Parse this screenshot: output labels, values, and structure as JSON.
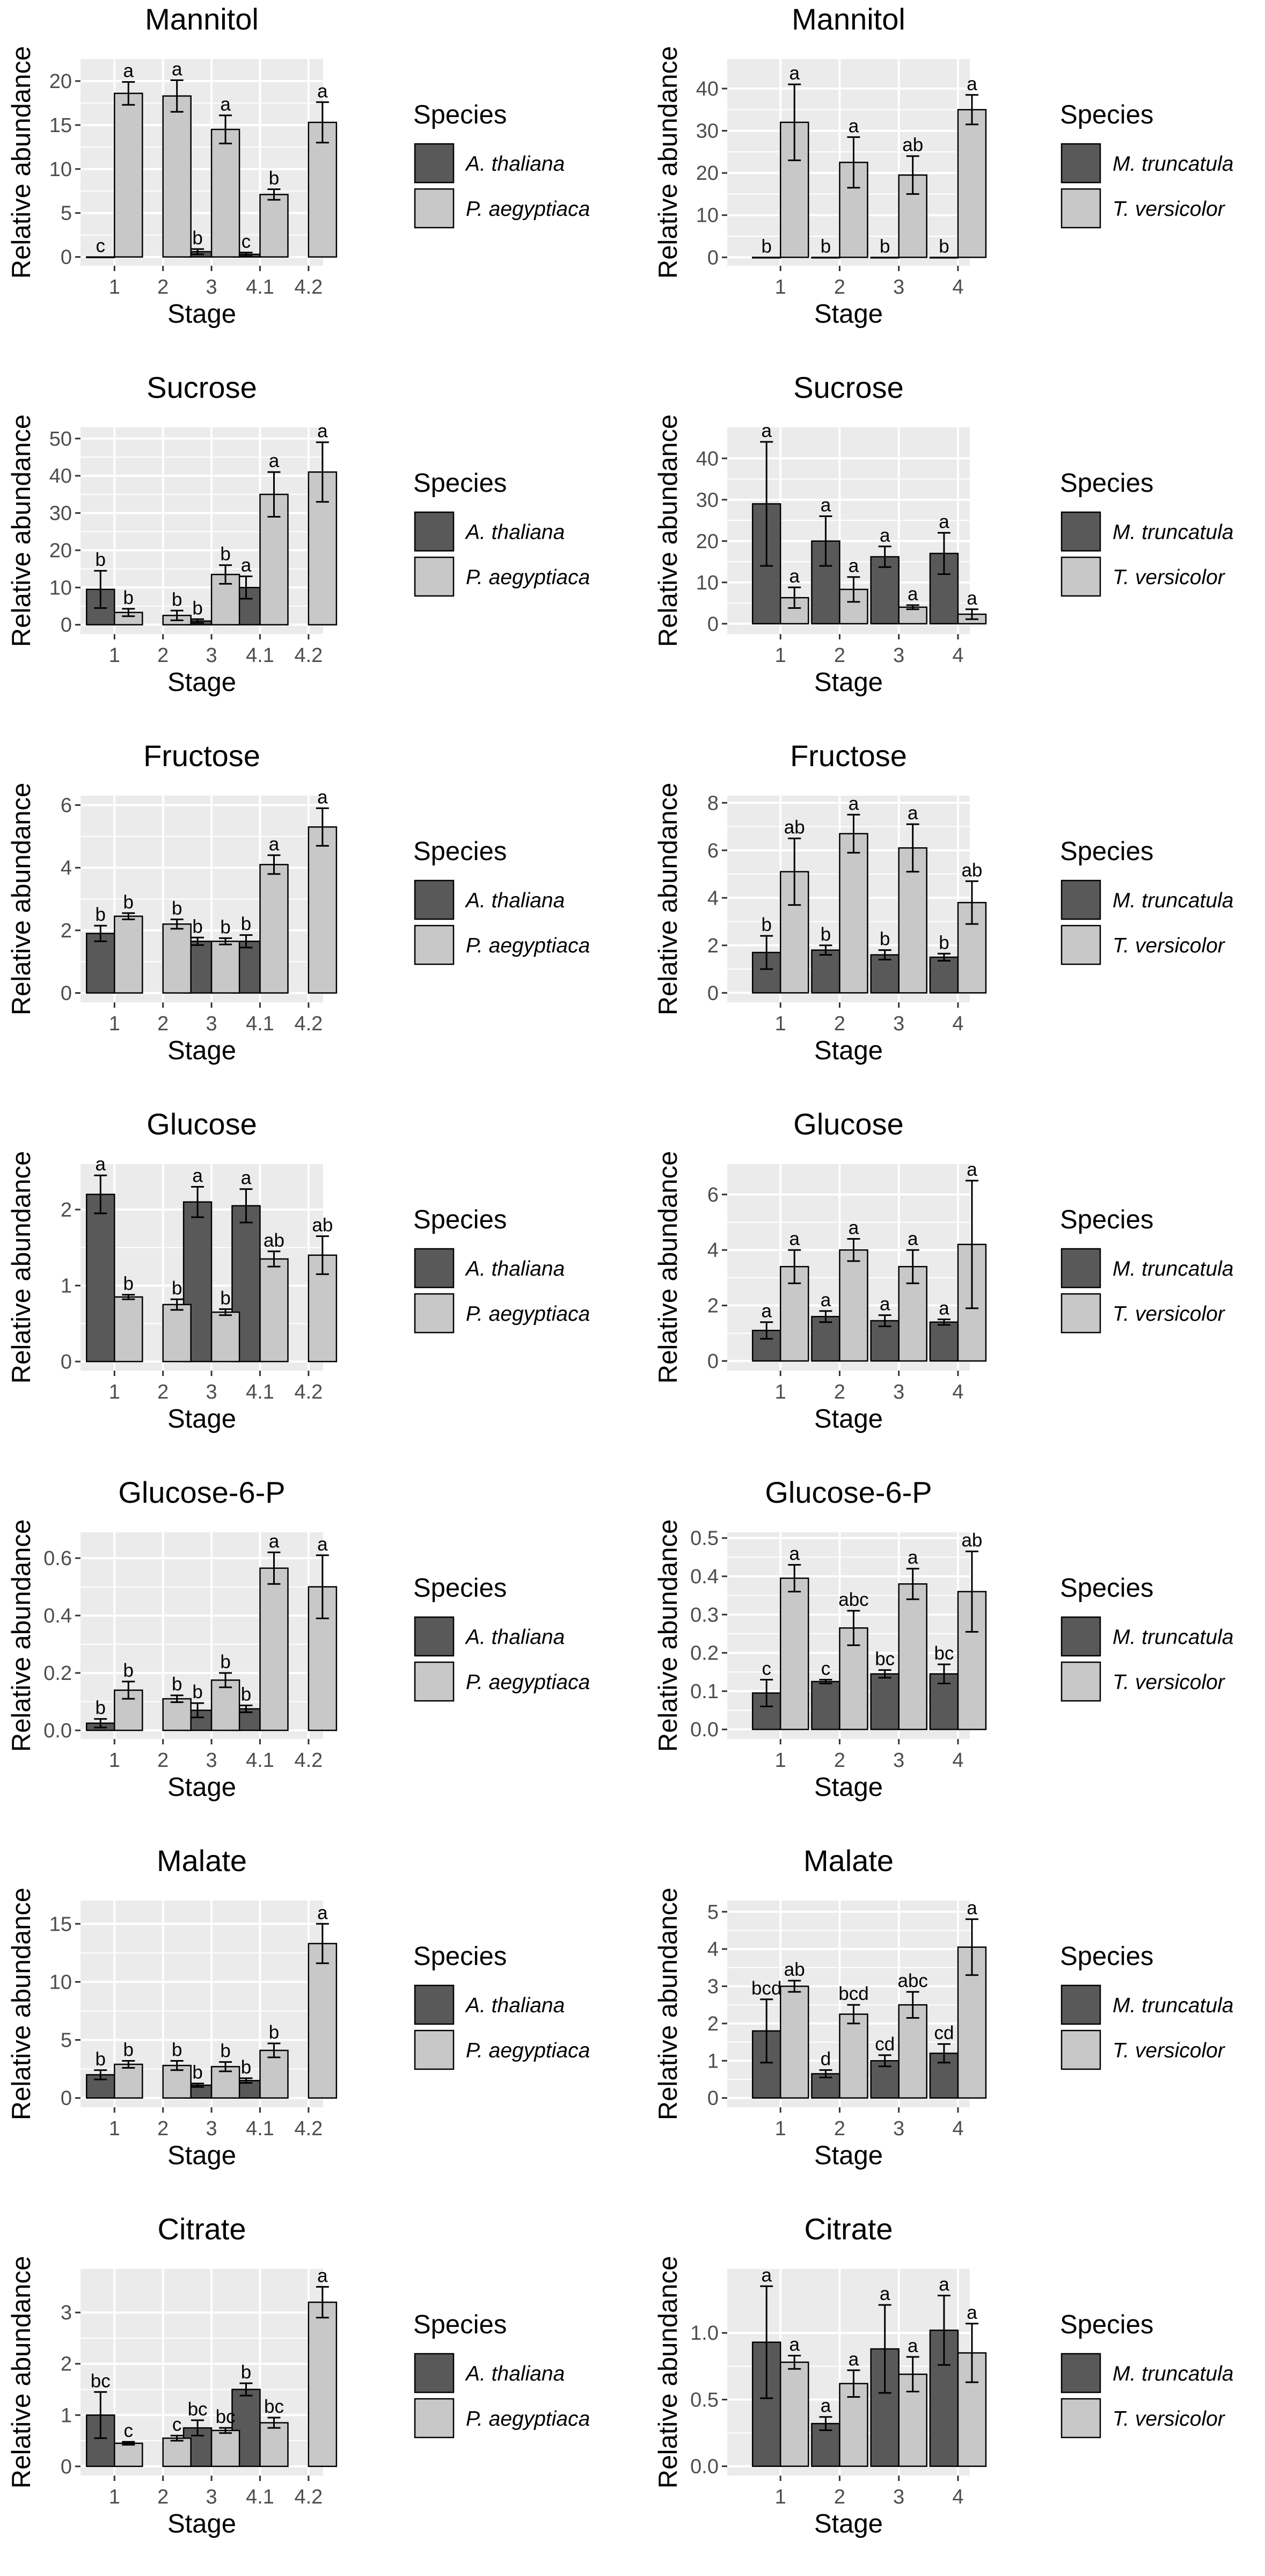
{
  "figure": {
    "colors": {
      "panel_bg": "#ebebeb",
      "grid": "#ffffff",
      "series_dark": "#595959",
      "series_light": "#c8c8c8",
      "bar_outline": "#000000"
    },
    "legend_title": "Species"
  },
  "chart_data": [
    {
      "type": "bar",
      "title": "Mannitol",
      "xlabel": "Stage",
      "ylabel": "Relative abundance",
      "categories": [
        "1",
        "2",
        "3",
        "4.1",
        "4.2"
      ],
      "ylim": [
        -1,
        22.5
      ],
      "yticks": [
        0,
        5,
        10,
        15,
        20
      ],
      "tick_labels": [
        "0",
        "5",
        "10",
        "15",
        "20"
      ],
      "legend": [
        "A. thaliana",
        "P. aegyptiaca"
      ],
      "series": [
        {
          "name": "A. thaliana",
          "values": [
            0,
            null,
            0.6,
            0.3,
            null
          ],
          "errors": [
            0,
            null,
            0.3,
            0.2,
            null
          ],
          "letters": [
            "c",
            null,
            "b",
            "c",
            null
          ]
        },
        {
          "name": "P. aegyptiaca",
          "values": [
            18.6,
            18.3,
            14.5,
            7.1,
            15.3
          ],
          "errors": [
            1.3,
            1.8,
            1.6,
            0.6,
            2.3
          ],
          "letters": [
            "a",
            "a",
            "a",
            "b",
            "a"
          ]
        }
      ]
    },
    {
      "type": "bar",
      "title": "Mannitol",
      "xlabel": "Stage",
      "ylabel": "Relative abundance",
      "categories": [
        "1",
        "2",
        "3",
        "4"
      ],
      "ylim": [
        -2,
        47
      ],
      "yticks": [
        0,
        10,
        20,
        30,
        40
      ],
      "tick_labels": [
        "0",
        "10",
        "20",
        "30",
        "40"
      ],
      "legend": [
        "M. truncatula",
        "T. versicolor"
      ],
      "series": [
        {
          "name": "M. truncatula",
          "values": [
            0,
            0,
            0,
            0
          ],
          "errors": [
            0,
            0,
            0,
            0
          ],
          "letters": [
            "b",
            "b",
            "b",
            "b"
          ]
        },
        {
          "name": "T. versicolor",
          "values": [
            32,
            22.5,
            19.5,
            35
          ],
          "errors": [
            9,
            6,
            4.5,
            3.5
          ],
          "letters": [
            "a",
            "a",
            "ab",
            "a"
          ]
        }
      ]
    },
    {
      "type": "bar",
      "title": "Sucrose",
      "xlabel": "Stage",
      "ylabel": "Relative abundance",
      "categories": [
        "1",
        "2",
        "3",
        "4.1",
        "4.2"
      ],
      "ylim": [
        -2.5,
        53
      ],
      "yticks": [
        0,
        10,
        20,
        30,
        40,
        50
      ],
      "tick_labels": [
        "0",
        "10",
        "20",
        "30",
        "40",
        "50"
      ],
      "legend": [
        "A. thaliana",
        "P. aegyptiaca"
      ],
      "series": [
        {
          "name": "A. thaliana",
          "values": [
            9.5,
            null,
            1,
            10,
            null
          ],
          "errors": [
            5,
            null,
            0.5,
            3,
            null
          ],
          "letters": [
            "b",
            null,
            "b",
            "a",
            null
          ]
        },
        {
          "name": "P. aegyptiaca",
          "values": [
            3.3,
            2.5,
            13.5,
            35,
            41
          ],
          "errors": [
            1,
            1.3,
            2.5,
            6,
            8
          ],
          "letters": [
            "b",
            "b",
            "b",
            "a",
            "a"
          ]
        }
      ]
    },
    {
      "type": "bar",
      "title": "Sucrose",
      "xlabel": "Stage",
      "ylabel": "Relative abundance",
      "categories": [
        "1",
        "2",
        "3",
        "4"
      ],
      "ylim": [
        -2.5,
        47.5
      ],
      "yticks": [
        0,
        10,
        20,
        30,
        40
      ],
      "tick_labels": [
        "0",
        "10",
        "20",
        "30",
        "40"
      ],
      "legend": [
        "M. truncatula",
        "T. versicolor"
      ],
      "series": [
        {
          "name": "M. truncatula",
          "values": [
            29,
            20,
            16.2,
            17
          ],
          "errors": [
            15,
            6,
            2.5,
            5
          ],
          "letters": [
            "a",
            "a",
            "a",
            "a"
          ]
        },
        {
          "name": "T. versicolor",
          "values": [
            6.3,
            8.3,
            4,
            2.3
          ],
          "errors": [
            2.5,
            3,
            0.5,
            1.2
          ],
          "letters": [
            "a",
            "a",
            "a",
            "a"
          ]
        }
      ]
    },
    {
      "type": "bar",
      "title": "Fructose",
      "xlabel": "Stage",
      "ylabel": "Relative abundance",
      "categories": [
        "1",
        "2",
        "3",
        "4.1",
        "4.2"
      ],
      "ylim": [
        -0.3,
        6.3
      ],
      "yticks": [
        0,
        2,
        4,
        6
      ],
      "tick_labels": [
        "0",
        "2",
        "4",
        "6"
      ],
      "legend": [
        "A. thaliana",
        "P. aegyptiaca"
      ],
      "series": [
        {
          "name": "A. thaliana",
          "values": [
            1.9,
            null,
            1.65,
            1.65,
            null
          ],
          "errors": [
            0.25,
            null,
            0.12,
            0.2,
            null
          ],
          "letters": [
            "b",
            null,
            "b",
            "b",
            null
          ]
        },
        {
          "name": "P. aegyptiaca",
          "values": [
            2.45,
            2.2,
            1.65,
            4.1,
            5.3
          ],
          "errors": [
            0.1,
            0.15,
            0.1,
            0.3,
            0.6
          ],
          "letters": [
            "b",
            "b",
            "b",
            "a",
            "a"
          ]
        }
      ]
    },
    {
      "type": "bar",
      "title": "Fructose",
      "xlabel": "Stage",
      "ylabel": "Relative abundance",
      "categories": [
        "1",
        "2",
        "3",
        "4"
      ],
      "ylim": [
        -0.4,
        8.3
      ],
      "yticks": [
        0,
        2,
        4,
        6,
        8
      ],
      "tick_labels": [
        "0",
        "2",
        "4",
        "6",
        "8"
      ],
      "legend": [
        "M. truncatula",
        "T. versicolor"
      ],
      "series": [
        {
          "name": "M. truncatula",
          "values": [
            1.7,
            1.8,
            1.6,
            1.5
          ],
          "errors": [
            0.7,
            0.2,
            0.2,
            0.15
          ],
          "letters": [
            "b",
            "b",
            "b",
            "b"
          ]
        },
        {
          "name": "T. versicolor",
          "values": [
            5.1,
            6.7,
            6.1,
            3.8
          ],
          "errors": [
            1.4,
            0.8,
            1,
            0.9
          ],
          "letters": [
            "ab",
            "a",
            "a",
            "ab"
          ]
        }
      ]
    },
    {
      "type": "bar",
      "title": "Glucose",
      "xlabel": "Stage",
      "ylabel": "Relative abundance",
      "categories": [
        "1",
        "2",
        "3",
        "4.1",
        "4.2"
      ],
      "ylim": [
        -0.12,
        2.6
      ],
      "yticks": [
        0,
        1,
        2
      ],
      "tick_labels": [
        "0",
        "1",
        "2"
      ],
      "legend": [
        "A. thaliana",
        "P. aegyptiaca"
      ],
      "series": [
        {
          "name": "A. thaliana",
          "values": [
            2.2,
            null,
            2.1,
            2.05,
            null
          ],
          "errors": [
            0.25,
            null,
            0.2,
            0.22,
            null
          ],
          "letters": [
            "a",
            null,
            "a",
            "a",
            null
          ]
        },
        {
          "name": "P. aegyptiaca",
          "values": [
            0.85,
            0.75,
            0.65,
            1.35,
            1.4
          ],
          "errors": [
            0.03,
            0.07,
            0.04,
            0.1,
            0.25
          ],
          "letters": [
            "b",
            "b",
            "b",
            "ab",
            "ab"
          ]
        }
      ]
    },
    {
      "type": "bar",
      "title": "Glucose",
      "xlabel": "Stage",
      "ylabel": "Relative abundance",
      "categories": [
        "1",
        "2",
        "3",
        "4"
      ],
      "ylim": [
        -0.35,
        7.1
      ],
      "yticks": [
        0,
        2,
        4,
        6
      ],
      "tick_labels": [
        "0",
        "2",
        "4",
        "6"
      ],
      "legend": [
        "M. truncatula",
        "T. versicolor"
      ],
      "series": [
        {
          "name": "M. truncatula",
          "values": [
            1.1,
            1.6,
            1.45,
            1.4
          ],
          "errors": [
            0.3,
            0.2,
            0.2,
            0.1
          ],
          "letters": [
            "a",
            "a",
            "a",
            "a"
          ]
        },
        {
          "name": "T. versicolor",
          "values": [
            3.4,
            4,
            3.4,
            4.2
          ],
          "errors": [
            0.6,
            0.4,
            0.6,
            2.3
          ],
          "letters": [
            "a",
            "a",
            "a",
            "a"
          ]
        }
      ]
    },
    {
      "type": "bar",
      "title": "Glucose-6-P",
      "xlabel": "Stage",
      "ylabel": "Relative abundance",
      "categories": [
        "1",
        "2",
        "3",
        "4.1",
        "4.2"
      ],
      "ylim": [
        -0.03,
        0.69
      ],
      "yticks": [
        0,
        0.2,
        0.4,
        0.6
      ],
      "tick_labels": [
        "0.0",
        "0.2",
        "0.4",
        "0.6"
      ],
      "legend": [
        "A. thaliana",
        "P. aegyptiaca"
      ],
      "series": [
        {
          "name": "A. thaliana",
          "values": [
            0.025,
            null,
            0.07,
            0.075,
            null
          ],
          "errors": [
            0.015,
            null,
            0.025,
            0.012,
            null
          ],
          "letters": [
            "b",
            null,
            "b",
            "b",
            null
          ]
        },
        {
          "name": "P. aegyptiaca",
          "values": [
            0.14,
            0.11,
            0.175,
            0.565,
            0.5
          ],
          "errors": [
            0.03,
            0.012,
            0.025,
            0.055,
            0.11
          ],
          "letters": [
            "b",
            "b",
            "b",
            "a",
            "a"
          ]
        }
      ]
    },
    {
      "type": "bar",
      "title": "Glucose-6-P",
      "xlabel": "Stage",
      "ylabel": "Relative abundance",
      "categories": [
        "1",
        "2",
        "3",
        "4"
      ],
      "ylim": [
        -0.025,
        0.515
      ],
      "yticks": [
        0,
        0.1,
        0.2,
        0.3,
        0.4,
        0.5
      ],
      "tick_labels": [
        "0.0",
        "0.1",
        "0.2",
        "0.3",
        "0.4",
        "0.5"
      ],
      "legend": [
        "M. truncatula",
        "T. versicolor"
      ],
      "series": [
        {
          "name": "M. truncatula",
          "values": [
            0.095,
            0.125,
            0.145,
            0.145
          ],
          "errors": [
            0.035,
            0.005,
            0.01,
            0.025
          ],
          "letters": [
            "c",
            "c",
            "bc",
            "bc"
          ]
        },
        {
          "name": "T. versicolor",
          "values": [
            0.395,
            0.265,
            0.38,
            0.36
          ],
          "errors": [
            0.035,
            0.045,
            0.04,
            0.105
          ],
          "letters": [
            "a",
            "abc",
            "a",
            "ab"
          ]
        }
      ]
    },
    {
      "type": "bar",
      "title": "Malate",
      "xlabel": "Stage",
      "ylabel": "Relative abundance",
      "categories": [
        "1",
        "2",
        "3",
        "4.1",
        "4.2"
      ],
      "ylim": [
        -0.8,
        17
      ],
      "yticks": [
        0,
        5,
        10,
        15
      ],
      "tick_labels": [
        "0",
        "5",
        "10",
        "15"
      ],
      "legend": [
        "A. thaliana",
        "P. aegyptiaca"
      ],
      "series": [
        {
          "name": "A. thaliana",
          "values": [
            2,
            null,
            1.1,
            1.5,
            null
          ],
          "errors": [
            0.4,
            null,
            0.15,
            0.2,
            null
          ],
          "letters": [
            "b",
            null,
            "b",
            "b",
            null
          ]
        },
        {
          "name": "P. aegyptiaca",
          "values": [
            2.9,
            2.8,
            2.7,
            4.1,
            13.3
          ],
          "errors": [
            0.3,
            0.4,
            0.4,
            0.6,
            1.7
          ],
          "letters": [
            "b",
            "b",
            "b",
            "b",
            "a"
          ]
        }
      ]
    },
    {
      "type": "bar",
      "title": "Malate",
      "xlabel": "Stage",
      "ylabel": "Relative abundance",
      "categories": [
        "1",
        "2",
        "3",
        "4"
      ],
      "ylim": [
        -0.25,
        5.3
      ],
      "yticks": [
        0,
        1,
        2,
        3,
        4,
        5
      ],
      "tick_labels": [
        "0",
        "1",
        "2",
        "3",
        "4",
        "5"
      ],
      "legend": [
        "M. truncatula",
        "T. versicolor"
      ],
      "series": [
        {
          "name": "M. truncatula",
          "values": [
            1.8,
            0.65,
            1,
            1.2
          ],
          "errors": [
            0.85,
            0.1,
            0.15,
            0.25
          ],
          "letters": [
            "bcd",
            "d",
            "cd",
            "cd"
          ]
        },
        {
          "name": "T. versicolor",
          "values": [
            3,
            2.25,
            2.5,
            4.05
          ],
          "errors": [
            0.15,
            0.25,
            0.35,
            0.75
          ],
          "letters": [
            "ab",
            "bcd",
            "abc",
            "a"
          ]
        }
      ]
    },
    {
      "type": "bar",
      "title": "Citrate",
      "xlabel": "Stage",
      "ylabel": "Relative abundance",
      "categories": [
        "1",
        "2",
        "3",
        "4.1",
        "4.2"
      ],
      "ylim": [
        -0.18,
        3.85
      ],
      "yticks": [
        0,
        1,
        2,
        3
      ],
      "tick_labels": [
        "0",
        "1",
        "2",
        "3"
      ],
      "legend": [
        "A. thaliana",
        "P. aegyptiaca"
      ],
      "series": [
        {
          "name": "A. thaliana",
          "values": [
            1,
            null,
            0.75,
            1.5,
            null
          ],
          "errors": [
            0.45,
            null,
            0.15,
            0.12,
            null
          ],
          "letters": [
            "bc",
            null,
            "bc",
            "b",
            null
          ]
        },
        {
          "name": "P. aegyptiaca",
          "values": [
            0.45,
            0.55,
            0.7,
            0.85,
            3.2
          ],
          "errors": [
            0.03,
            0.05,
            0.05,
            0.1,
            0.3
          ],
          "letters": [
            "c",
            "c",
            "bc",
            "bc",
            "a"
          ]
        }
      ]
    },
    {
      "type": "bar",
      "title": "Citrate",
      "xlabel": "Stage",
      "ylabel": "Relative abundance",
      "categories": [
        "1",
        "2",
        "3",
        "4"
      ],
      "ylim": [
        -0.07,
        1.48
      ],
      "yticks": [
        0,
        0.5,
        1
      ],
      "tick_labels": [
        "0.0",
        "0.5",
        "1.0"
      ],
      "legend": [
        "M. truncatula",
        "T. versicolor"
      ],
      "series": [
        {
          "name": "M. truncatula",
          "values": [
            0.93,
            0.32,
            0.88,
            1.02
          ],
          "errors": [
            0.42,
            0.05,
            0.33,
            0.26
          ],
          "letters": [
            "a",
            "a",
            "a",
            "a"
          ]
        },
        {
          "name": "T. versicolor",
          "values": [
            0.78,
            0.62,
            0.69,
            0.85
          ],
          "errors": [
            0.05,
            0.1,
            0.13,
            0.22
          ],
          "letters": [
            "a",
            "a",
            "a",
            "a"
          ]
        }
      ]
    }
  ]
}
